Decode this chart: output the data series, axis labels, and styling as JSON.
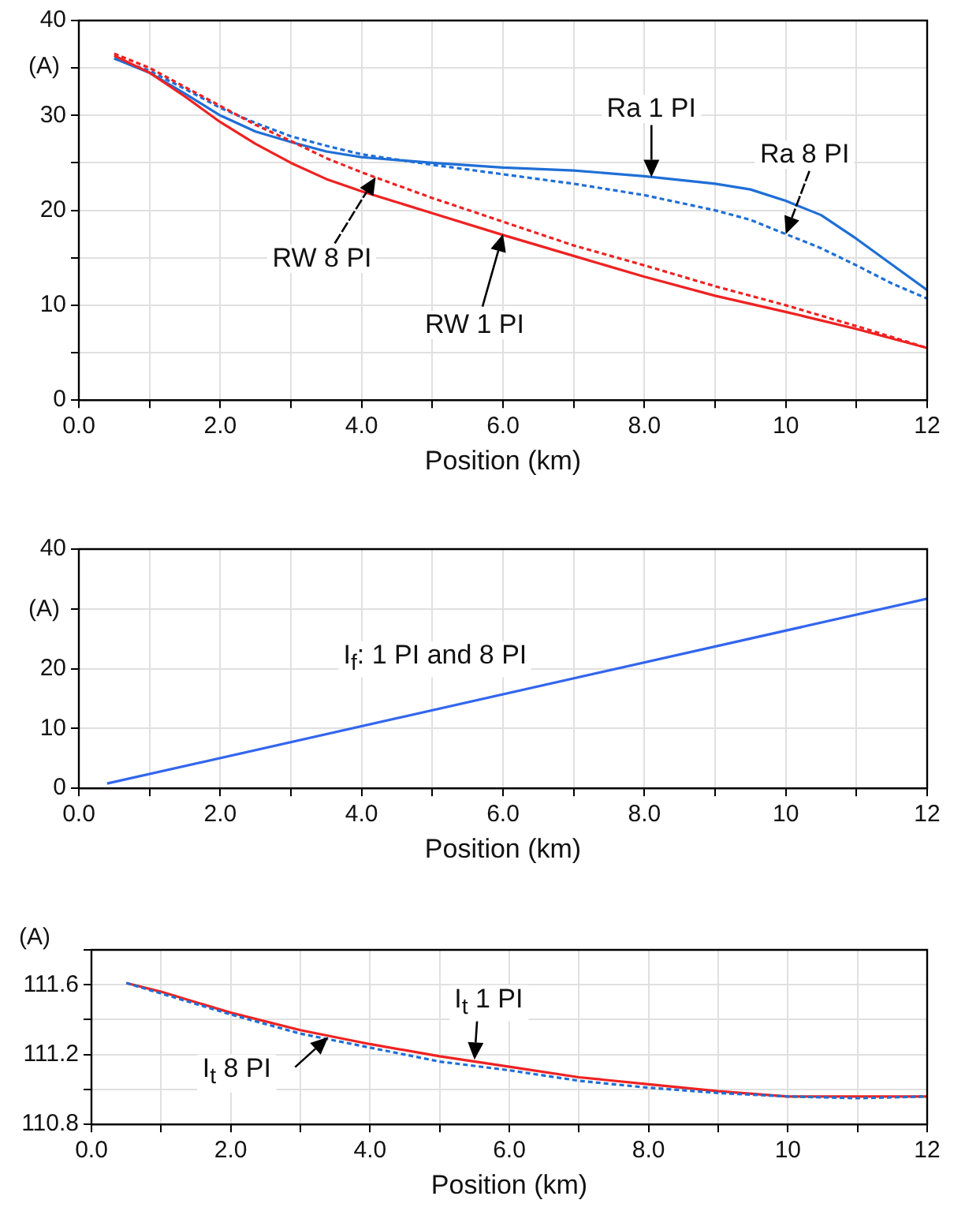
{
  "chart_data": [
    {
      "type": "line",
      "xlabel": "Position (km)",
      "ylabel": "(A)",
      "xlim": [
        0,
        12
      ],
      "ylim": [
        0,
        40
      ],
      "xticks": [
        {
          "value": 0,
          "label": "0.0"
        },
        {
          "value": 1,
          "label": null
        },
        {
          "value": 2,
          "label": "2.0"
        },
        {
          "value": 3,
          "label": null
        },
        {
          "value": 4,
          "label": "4.0"
        },
        {
          "value": 5,
          "label": null
        },
        {
          "value": 6,
          "label": "6.0"
        },
        {
          "value": 7,
          "label": null
        },
        {
          "value": 8,
          "label": "8.0"
        },
        {
          "value": 9,
          "label": null
        },
        {
          "value": 10,
          "label": "10"
        },
        {
          "value": 11,
          "label": null
        },
        {
          "value": 12,
          "label": "12"
        }
      ],
      "yticks": [
        0,
        {
          "value": 5,
          "label": null
        },
        10,
        {
          "value": 15,
          "label": null
        },
        20,
        {
          "value": 25,
          "label": null
        },
        30,
        {
          "value": 35,
          "label": null
        },
        40
      ],
      "grid": true,
      "legend": false,
      "marker": "none",
      "series": [
        {
          "color": "#1f6fd6",
          "line_style": "solid",
          "x": [
            0.5,
            1,
            1.5,
            2,
            2.5,
            3,
            3.5,
            4,
            5,
            6,
            7,
            8,
            9,
            9.5,
            10,
            10.5,
            11,
            11.5,
            12
          ],
          "values": [
            36,
            34.5,
            32.3,
            30,
            28.3,
            27.2,
            26.2,
            25.6,
            25,
            24.5,
            24.2,
            23.6,
            22.8,
            22.2,
            21,
            19.5,
            17,
            14.3,
            11.6
          ]
        },
        {
          "color": "#1f6fd6",
          "line_style": "dashed",
          "x": [
            0.5,
            1,
            1.5,
            2,
            2.5,
            3,
            3.5,
            4,
            5,
            6,
            7,
            8,
            9,
            9.5,
            10,
            10.5,
            11,
            11.5,
            12
          ],
          "values": [
            36,
            34.7,
            32.8,
            30.8,
            29.2,
            27.8,
            26.8,
            25.9,
            24.8,
            23.8,
            22.8,
            21.6,
            20,
            19,
            17.5,
            16,
            14.2,
            12.3,
            10.7
          ]
        },
        {
          "color": "#ee2222",
          "line_style": "solid",
          "x": [
            0.5,
            1,
            1.5,
            2,
            2.5,
            3,
            3.5,
            4,
            5,
            6,
            7,
            8,
            9,
            10,
            11,
            12
          ],
          "values": [
            36.3,
            34.5,
            32,
            29.3,
            27,
            25,
            23.3,
            22,
            19.7,
            17.4,
            15.2,
            13,
            11,
            9.3,
            7.5,
            5.5
          ]
        },
        {
          "color": "#ee2222",
          "line_style": "dashed",
          "x": [
            0.5,
            1,
            1.5,
            2,
            2.5,
            3,
            3.5,
            4,
            5,
            6,
            7,
            8,
            9,
            10,
            11,
            12
          ],
          "values": [
            36.5,
            35,
            33,
            31,
            29,
            27.3,
            25.5,
            24,
            21.3,
            18.8,
            16.3,
            14.2,
            12,
            10,
            7.8,
            5.5
          ]
        }
      ],
      "annotations": [
        {
          "text": "Ra 1 PI",
          "x": 8.1,
          "y": 23.5
        },
        {
          "text": "Ra 8 PI",
          "x": 10,
          "y": 17.5
        },
        {
          "text": "RW 8 PI",
          "x": 4.2,
          "y": 23.5
        },
        {
          "text": "RW 1 PI",
          "x": 6,
          "y": 17.5
        }
      ]
    },
    {
      "type": "line",
      "xlabel": "Position (km)",
      "ylabel": "(A)",
      "xlim": [
        0,
        12
      ],
      "ylim": [
        0,
        40
      ],
      "xticks": [
        {
          "value": 0,
          "label": "0.0"
        },
        {
          "value": 1,
          "label": null
        },
        {
          "value": 2,
          "label": "2.0"
        },
        {
          "value": 3,
          "label": null
        },
        {
          "value": 4,
          "label": "4.0"
        },
        {
          "value": 5,
          "label": null
        },
        {
          "value": 6,
          "label": "6.0"
        },
        {
          "value": 7,
          "label": null
        },
        {
          "value": 8,
          "label": "8.0"
        },
        {
          "value": 9,
          "label": null
        },
        {
          "value": 10,
          "label": "10"
        },
        {
          "value": 11,
          "label": null
        },
        {
          "value": 12,
          "label": "12"
        }
      ],
      "yticks": [
        0,
        10,
        20,
        {
          "value": 30,
          "label": null
        },
        40
      ],
      "grid": true,
      "legend": false,
      "marker": "none",
      "series": [
        {
          "color": "#3366ee",
          "line_style": "solid",
          "x": [
            0.4,
            12
          ],
          "values": [
            0.8,
            31.7
          ]
        }
      ],
      "annotations": [
        "I$_{f}$: 1 PI and 8 PI"
      ]
    },
    {
      "type": "line",
      "xlabel": "Position (km)",
      "ylabel": "(A)",
      "xlim": [
        0,
        12
      ],
      "ylim": [
        110.8,
        111.8
      ],
      "xticks": [
        {
          "value": 0,
          "label": "0.0"
        },
        {
          "value": 1,
          "label": null
        },
        {
          "value": 2,
          "label": "2.0"
        },
        {
          "value": 3,
          "label": null
        },
        {
          "value": 4,
          "label": "4.0"
        },
        {
          "value": 5,
          "label": null
        },
        {
          "value": 6,
          "label": "6.0"
        },
        {
          "value": 7,
          "label": null
        },
        {
          "value": 8,
          "label": "8.0"
        },
        {
          "value": 9,
          "label": null
        },
        {
          "value": 10,
          "label": "10"
        },
        {
          "value": 11,
          "label": null
        },
        {
          "value": 12,
          "label": "12"
        }
      ],
      "yticks": [
        {
          "value": 110.8,
          "label": "110.8"
        },
        {
          "value": 111,
          "label": null
        },
        111.2,
        {
          "value": 111.4,
          "label": null
        },
        111.6,
        {
          "value": 111.8,
          "label": null
        }
      ],
      "grid": true,
      "legend": false,
      "marker": "none",
      "series": [
        {
          "color": "#ee2222",
          "line_style": "solid",
          "x": [
            0.5,
            1,
            2,
            3,
            4,
            5,
            6,
            7,
            8,
            9,
            10,
            11,
            12
          ],
          "values": [
            111.61,
            111.56,
            111.44,
            111.34,
            111.26,
            111.19,
            111.13,
            111.07,
            111.03,
            110.99,
            110.96,
            110.96,
            110.96
          ]
        },
        {
          "color": "#1f6fd6",
          "line_style": "dashed",
          "x": [
            0.5,
            1,
            2,
            3,
            4,
            5,
            6,
            7,
            8,
            9,
            10,
            11,
            12
          ],
          "values": [
            111.61,
            111.55,
            111.43,
            111.32,
            111.24,
            111.16,
            111.11,
            111.05,
            111.01,
            110.98,
            110.96,
            110.95,
            110.96
          ]
        }
      ],
      "annotations": [
        {
          "text": "I$_{t}$ 1 PI",
          "x": 5.5,
          "y": 111.17
        },
        {
          "text": "I$_{t}$ 8 PI",
          "x": 3.4,
          "y": 111.3
        }
      ]
    }
  ]
}
